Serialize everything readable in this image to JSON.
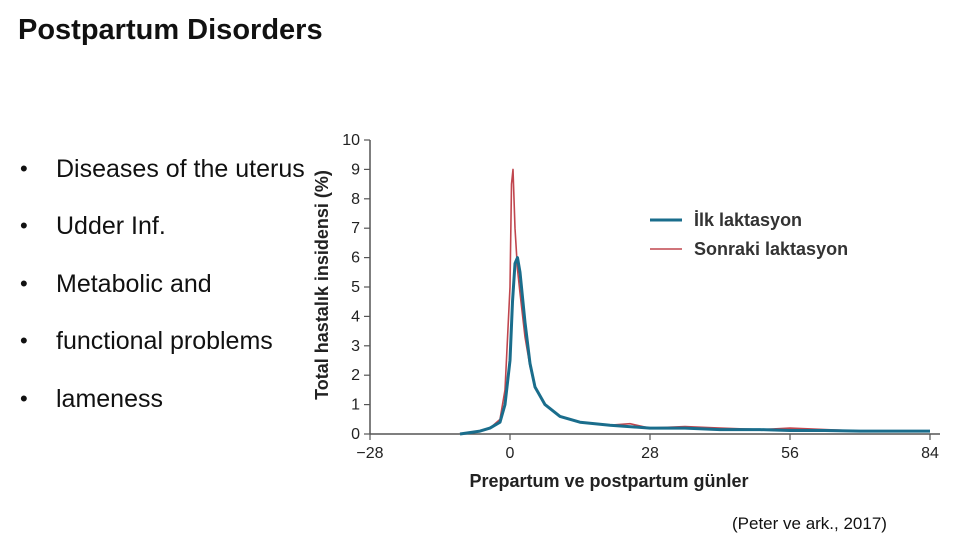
{
  "slide": {
    "title": "Postpartum Disorders",
    "bullets": [
      "Diseases of the uterus",
      "Udder Inf.",
      "Metabolic and",
      "functional problems",
      "lameness"
    ],
    "citation": "(Peter ve ark., 2017)"
  },
  "chart_data": {
    "type": "line",
    "title": "",
    "xlabel": "Prepartum ve postpartum günler",
    "ylabel": "Total hastalık insidensi (%)",
    "xlim": [
      -28,
      84
    ],
    "ylim": [
      0,
      10
    ],
    "xticks": [
      "−28",
      "0",
      "28",
      "56",
      "84"
    ],
    "xtick_values": [
      -28,
      0,
      28,
      56,
      84
    ],
    "yticks": [
      "0",
      "1",
      "2",
      "3",
      "4",
      "5",
      "6",
      "7",
      "8",
      "9",
      "10"
    ],
    "grid": false,
    "legend_position": "top-right",
    "series": [
      {
        "name": "İlk laktasyon",
        "color": "#1a6d8c",
        "x": [
          -10,
          -6,
          -4,
          -2,
          -1,
          0,
          0.5,
          1,
          1.5,
          2,
          3,
          4,
          5,
          7,
          10,
          14,
          20,
          28,
          35,
          42,
          50,
          56,
          63,
          70,
          77,
          84
        ],
        "y": [
          0.0,
          0.1,
          0.2,
          0.4,
          1.0,
          2.5,
          4.5,
          5.8,
          6.0,
          5.5,
          3.8,
          2.4,
          1.6,
          1.0,
          0.6,
          0.4,
          0.3,
          0.2,
          0.2,
          0.15,
          0.15,
          0.12,
          0.12,
          0.1,
          0.1,
          0.1
        ]
      },
      {
        "name": "Sonraki laktasyon",
        "color": "#c0464e",
        "x": [
          -10,
          -6,
          -4,
          -2,
          -1,
          0,
          0.3,
          0.6,
          1,
          1.5,
          2,
          3,
          4,
          5,
          7,
          10,
          14,
          20,
          24,
          28,
          35,
          42,
          50,
          56,
          63,
          70,
          77,
          84
        ],
        "y": [
          0.0,
          0.1,
          0.2,
          0.5,
          1.5,
          5.0,
          8.5,
          9.0,
          7.0,
          5.6,
          4.8,
          3.3,
          2.3,
          1.6,
          1.0,
          0.6,
          0.4,
          0.3,
          0.35,
          0.2,
          0.25,
          0.2,
          0.15,
          0.2,
          0.15,
          0.1,
          0.1,
          0.1
        ]
      }
    ]
  }
}
